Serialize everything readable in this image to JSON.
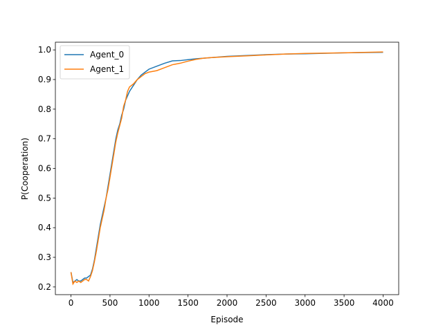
{
  "chart_data": {
    "type": "line",
    "x_label": "Episode",
    "y_label": "P(Cooperation)",
    "x": [
      0,
      25,
      50,
      75,
      100,
      125,
      150,
      175,
      200,
      225,
      250,
      275,
      300,
      325,
      350,
      375,
      400,
      425,
      450,
      475,
      500,
      525,
      550,
      575,
      600,
      625,
      650,
      675,
      700,
      725,
      750,
      800,
      850,
      900,
      950,
      1000,
      1100,
      1200,
      1300,
      1400,
      1500,
      1600,
      1700,
      1800,
      2000,
      2250,
      2500,
      2750,
      3000,
      3500,
      4000
    ],
    "series": [
      {
        "name": "Agent_0",
        "color": "#1f77b4",
        "values": [
          0.25,
          0.215,
          0.22,
          0.225,
          0.22,
          0.22,
          0.225,
          0.23,
          0.23,
          0.235,
          0.24,
          0.26,
          0.29,
          0.33,
          0.37,
          0.41,
          0.44,
          0.47,
          0.5,
          0.54,
          0.58,
          0.62,
          0.66,
          0.7,
          0.73,
          0.75,
          0.78,
          0.8,
          0.83,
          0.845,
          0.86,
          0.88,
          0.9,
          0.915,
          0.925,
          0.935,
          0.945,
          0.955,
          0.963,
          0.964,
          0.967,
          0.97,
          0.972,
          0.974,
          0.978,
          0.981,
          0.984,
          0.986,
          0.987,
          0.99,
          0.992
        ]
      },
      {
        "name": "Agent_1",
        "color": "#ff7f0e",
        "values": [
          0.25,
          0.21,
          0.22,
          0.215,
          0.22,
          0.215,
          0.22,
          0.225,
          0.225,
          0.22,
          0.235,
          0.255,
          0.285,
          0.32,
          0.36,
          0.4,
          0.43,
          0.46,
          0.5,
          0.53,
          0.57,
          0.61,
          0.65,
          0.69,
          0.72,
          0.745,
          0.77,
          0.81,
          0.83,
          0.86,
          0.875,
          0.885,
          0.9,
          0.91,
          0.92,
          0.925,
          0.93,
          0.94,
          0.95,
          0.955,
          0.962,
          0.968,
          0.972,
          0.974,
          0.977,
          0.98,
          0.983,
          0.986,
          0.988,
          0.99,
          0.993
        ]
      }
    ],
    "xlim": [
      -200,
      4200
    ],
    "ylim": [
      0.174,
      1.026
    ],
    "xticks": [
      0,
      500,
      1000,
      1500,
      2000,
      2500,
      3000,
      3500,
      4000
    ],
    "yticks": [
      0.2,
      0.3,
      0.4,
      0.5,
      0.6,
      0.7,
      0.8,
      0.9,
      {
        "value": 1,
        "label": "1.0"
      }
    ],
    "grid": false,
    "legend": "upper-left"
  }
}
